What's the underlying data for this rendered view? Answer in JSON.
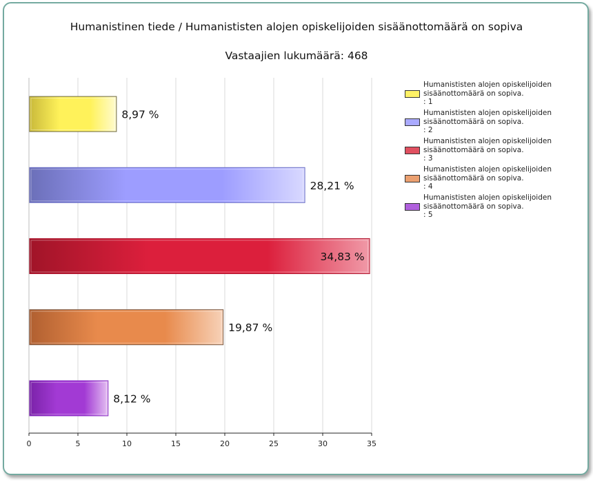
{
  "chart_data": {
    "type": "bar",
    "orientation": "horizontal",
    "title": "Humanistinen tiede / Humanististen alojen opiskelijoiden sisäänottomäärä on sopiva",
    "subtitle": "Vastaajien lukumäärä: 468",
    "categories": [
      "1",
      "2",
      "3",
      "4",
      "5"
    ],
    "values": [
      8.97,
      28.21,
      34.83,
      19.87,
      8.12
    ],
    "value_labels": [
      "8,97 %",
      "28,21 %",
      "34,83 %",
      "19,87 %",
      "8,12 %"
    ],
    "xlim": [
      0,
      35
    ],
    "xticks": [
      0,
      5,
      10,
      15,
      20,
      25,
      30,
      35
    ],
    "grid": true,
    "legend_position": "right",
    "legend": [
      {
        "label": "Humanististen alojen opiskelijoiden sisäänottomäärä on sopiva.\n: 1",
        "color": "#fff266"
      },
      {
        "label": "Humanististen alojen opiskelijoiden sisäänottomäärä on sopiva.\n: 2",
        "color": "#aaaaff"
      },
      {
        "label": "Humanististen alojen opiskelijoiden sisäänottomäärä on sopiva.\n: 3",
        "color": "#e05060"
      },
      {
        "label": "Humanististen alojen opiskelijoiden sisäänottomäärä on sopiva.\n: 4",
        "color": "#eba070"
      },
      {
        "label": "Humanististen alojen opiskelijoiden sisäänottomäärä on sopiva.\n: 5",
        "color": "#b060dd"
      }
    ],
    "colors": [
      {
        "dark": "#c9b93a",
        "mid": "#fff25a",
        "light": "#fffbd0",
        "border": "#6b6640"
      },
      {
        "dark": "#6b6fb8",
        "mid": "#9d9dff",
        "light": "#d9d9ff",
        "border": "#6a6ec4"
      },
      {
        "dark": "#a01428",
        "mid": "#dc1f3c",
        "light": "#f09aa8",
        "border": "#b01830"
      },
      {
        "dark": "#b05f30",
        "mid": "#e88a4c",
        "light": "#f7d2b8",
        "border": "#7a5a45"
      },
      {
        "dark": "#7a22a8",
        "mid": "#a23ad4",
        "light": "#e4c0f2",
        "border": "#8a33c4"
      }
    ]
  }
}
